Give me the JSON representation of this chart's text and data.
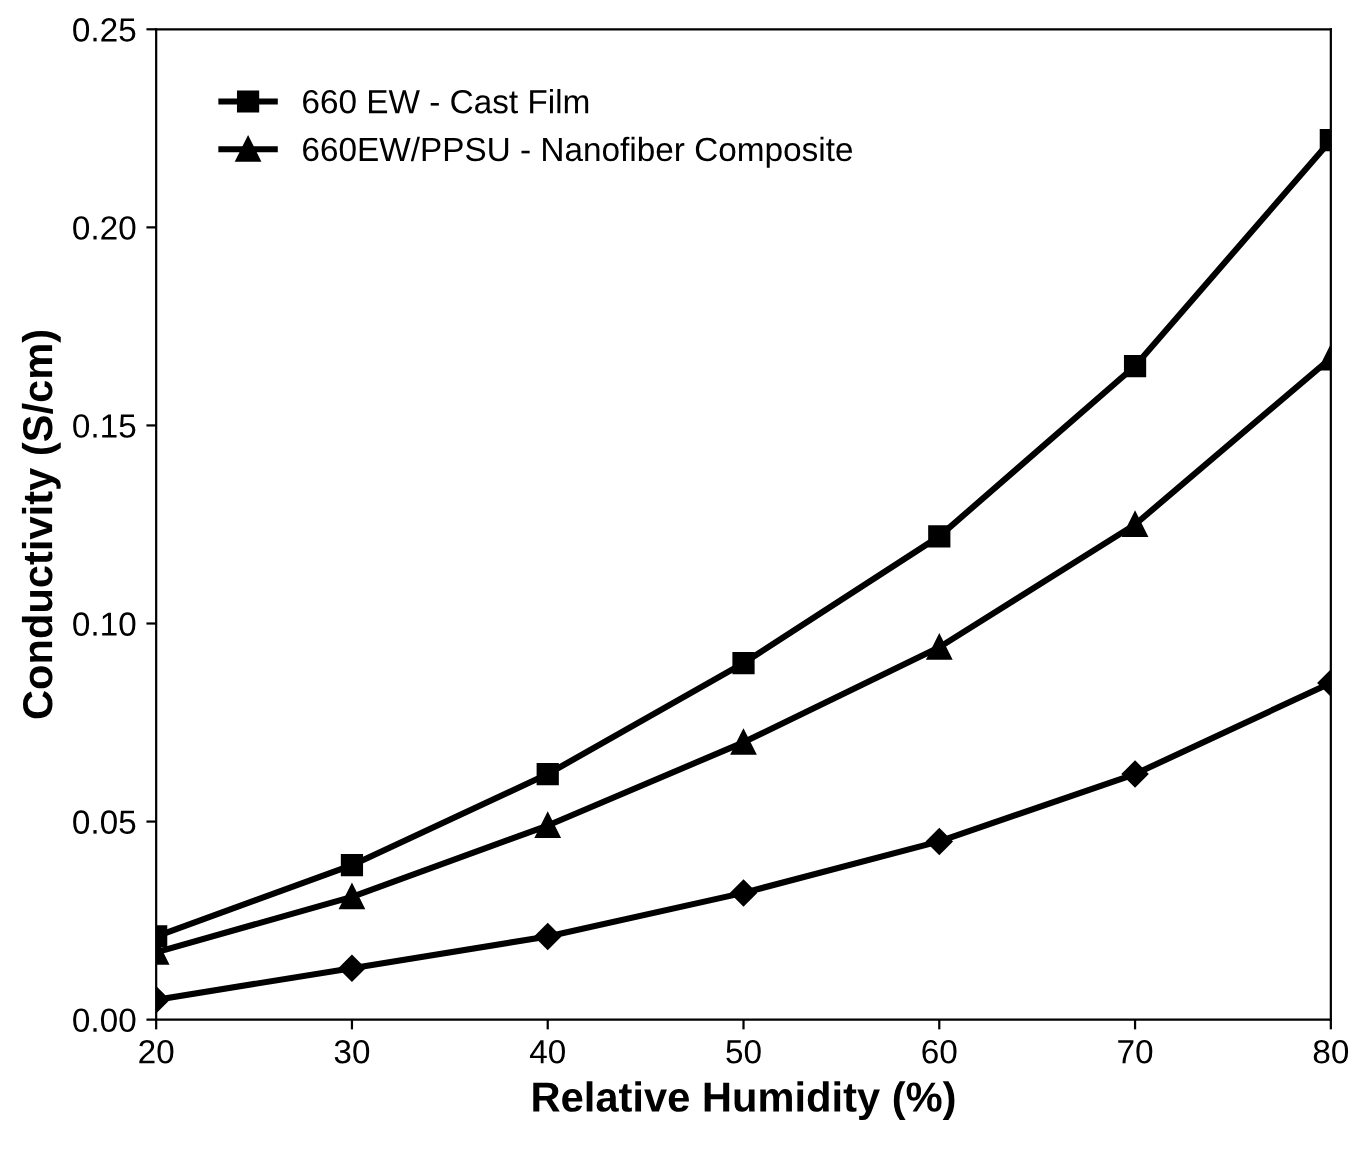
{
  "chart_data": {
    "type": "line",
    "xlabel": "Relative Humidity (%)",
    "ylabel": "Conductivity (S/cm)",
    "x": [
      20,
      30,
      40,
      50,
      60,
      70,
      80
    ],
    "series": [
      {
        "name": "660 EW - Cast Film",
        "color": "#000000",
        "marker": "square",
        "values": [
          0.021,
          0.039,
          0.062,
          0.09,
          0.122,
          0.165,
          0.222
        ]
      },
      {
        "name": "660EW/PPSU - Nanofiber Composite",
        "color": "#000000",
        "marker": "triangle",
        "values": [
          0.017,
          0.031,
          0.049,
          0.07,
          0.094,
          0.125,
          0.167
        ]
      },
      {
        "color": "#000000",
        "marker": "diamond",
        "values": [
          0.005,
          0.013,
          0.021,
          0.032,
          0.045,
          0.062,
          0.085
        ]
      }
    ],
    "xlim": [
      20,
      80
    ],
    "xticks": [
      20,
      30,
      40,
      50,
      60,
      70,
      80
    ],
    "ylim": [
      0,
      0.25
    ],
    "yticks": [
      {
        "value": 0,
        "label": "0.00"
      },
      {
        "value": 0.05,
        "label": "0.05"
      },
      {
        "value": 0.1,
        "label": "0.10"
      },
      {
        "value": 0.15,
        "label": "0.15"
      },
      {
        "value": 0.2,
        "label": "0.20"
      },
      {
        "value": 0.25,
        "label": "0.25"
      }
    ],
    "legend": "top left",
    "line_style": "solid"
  }
}
